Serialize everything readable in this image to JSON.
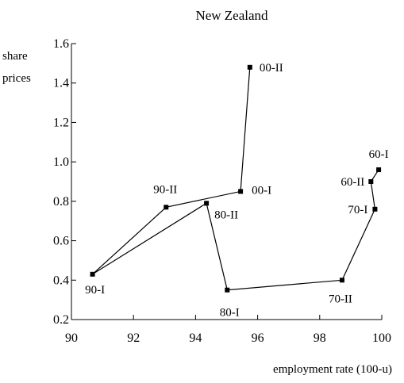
{
  "chart_data": {
    "type": "scatter",
    "title": "New Zealand",
    "xlabel": "employment rate (100-u)",
    "ylabel_line1": "share",
    "ylabel_line2": "prices",
    "xlim": [
      90,
      100
    ],
    "ylim": [
      0.2,
      1.6
    ],
    "x_ticks": [
      90,
      92,
      94,
      96,
      98,
      100
    ],
    "y_ticks": [
      0.2,
      0.4,
      0.6,
      0.8,
      1.0,
      1.2,
      1.4,
      1.6
    ],
    "x_tick_labels": [
      "90",
      "92",
      "94",
      "96",
      "98",
      "100"
    ],
    "y_tick_labels": [
      "0.2",
      "0.4",
      "0.6",
      "0.8",
      "1.0",
      "1.2",
      "1.4",
      "1.6"
    ],
    "grid": false,
    "connected": true,
    "points": [
      {
        "label": "60-I",
        "x": 99.9,
        "y": 0.96
      },
      {
        "label": "60-II",
        "x": 99.65,
        "y": 0.9
      },
      {
        "label": "70-I",
        "x": 99.78,
        "y": 0.76
      },
      {
        "label": "70-II",
        "x": 98.72,
        "y": 0.4
      },
      {
        "label": "80-I",
        "x": 95.02,
        "y": 0.35
      },
      {
        "label": "80-II",
        "x": 94.35,
        "y": 0.79
      },
      {
        "label": "90-I",
        "x": 90.68,
        "y": 0.43
      },
      {
        "label": "90-II",
        "x": 93.05,
        "y": 0.77
      },
      {
        "label": "00-I",
        "x": 95.45,
        "y": 0.85
      },
      {
        "label": "00-II",
        "x": 95.75,
        "y": 1.48
      }
    ]
  }
}
